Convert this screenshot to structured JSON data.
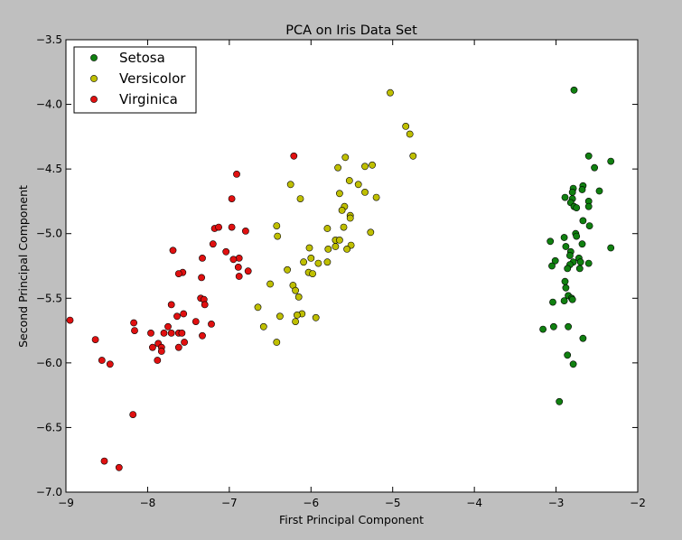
{
  "chart_data": {
    "type": "scatter",
    "title": "PCA on Iris Data Set",
    "xlabel": "First Principal Component",
    "ylabel": "Second Principal Component",
    "xlim": [
      -9,
      -2
    ],
    "ylim": [
      -7.0,
      -3.5
    ],
    "xticks": [
      -9,
      -8,
      -7,
      -6,
      -5,
      -4,
      -3,
      -2
    ],
    "xtick_labels": [
      "−9",
      "−8",
      "−7",
      "−6",
      "−5",
      "−4",
      "−3",
      "−2"
    ],
    "yticks": [
      -7.0,
      -6.5,
      -6.0,
      -5.5,
      -5.0,
      -4.5,
      -4.0,
      -3.5
    ],
    "ytick_labels": [
      "−7.0",
      "−6.5",
      "−6.0",
      "−5.5",
      "−5.0",
      "−4.5",
      "−4.0",
      "−3.5"
    ],
    "grid": false,
    "legend_position": "top-left",
    "series": [
      {
        "name": "Setosa",
        "color": "#108010",
        "points": [
          [
            -2.78,
            -3.89
          ],
          [
            -2.33,
            -4.44
          ],
          [
            -2.6,
            -4.4
          ],
          [
            -2.53,
            -4.49
          ],
          [
            -2.67,
            -4.63
          ],
          [
            -2.68,
            -4.66
          ],
          [
            -2.79,
            -4.65
          ],
          [
            -2.47,
            -4.67
          ],
          [
            -2.8,
            -4.68
          ],
          [
            -2.89,
            -4.72
          ],
          [
            -2.8,
            -4.73
          ],
          [
            -2.6,
            -4.75
          ],
          [
            -2.82,
            -4.76
          ],
          [
            -2.78,
            -4.79
          ],
          [
            -2.6,
            -4.79
          ],
          [
            -2.75,
            -4.8
          ],
          [
            -2.67,
            -4.9
          ],
          [
            -2.59,
            -4.94
          ],
          [
            -2.76,
            -5.0
          ],
          [
            -2.75,
            -5.02
          ],
          [
            -2.9,
            -5.03
          ],
          [
            -3.07,
            -5.06
          ],
          [
            -2.88,
            -5.1
          ],
          [
            -2.33,
            -5.11
          ],
          [
            -2.68,
            -5.08
          ],
          [
            -2.82,
            -5.14
          ],
          [
            -2.83,
            -5.17
          ],
          [
            -2.72,
            -5.19
          ],
          [
            -3.01,
            -5.21
          ],
          [
            -2.79,
            -5.22
          ],
          [
            -2.6,
            -5.23
          ],
          [
            -2.83,
            -5.24
          ],
          [
            -3.05,
            -5.25
          ],
          [
            -2.71,
            -5.27
          ],
          [
            -2.86,
            -5.27
          ],
          [
            -2.89,
            -5.37
          ],
          [
            -2.88,
            -5.42
          ],
          [
            -2.85,
            -5.48
          ],
          [
            -2.81,
            -5.5
          ],
          [
            -2.9,
            -5.52
          ],
          [
            -2.8,
            -5.51
          ],
          [
            -3.04,
            -5.53
          ],
          [
            -2.85,
            -5.72
          ],
          [
            -3.03,
            -5.72
          ],
          [
            -3.16,
            -5.74
          ],
          [
            -2.67,
            -5.81
          ],
          [
            -2.86,
            -5.94
          ],
          [
            -2.79,
            -6.01
          ],
          [
            -2.96,
            -6.3
          ],
          [
            -2.7,
            -5.22
          ]
        ]
      },
      {
        "name": "Versicolor",
        "color": "#bfbf00",
        "points": [
          [
            -5.03,
            -3.91
          ],
          [
            -4.84,
            -4.17
          ],
          [
            -4.79,
            -4.23
          ],
          [
            -4.75,
            -4.4
          ],
          [
            -5.58,
            -4.41
          ],
          [
            -5.25,
            -4.47
          ],
          [
            -5.34,
            -4.48
          ],
          [
            -5.67,
            -4.49
          ],
          [
            -5.53,
            -4.59
          ],
          [
            -5.42,
            -4.62
          ],
          [
            -6.25,
            -4.62
          ],
          [
            -5.34,
            -4.68
          ],
          [
            -5.65,
            -4.69
          ],
          [
            -5.2,
            -4.72
          ],
          [
            -6.13,
            -4.73
          ],
          [
            -5.59,
            -4.79
          ],
          [
            -5.62,
            -4.82
          ],
          [
            -5.52,
            -4.86
          ],
          [
            -5.52,
            -4.88
          ],
          [
            -6.42,
            -4.94
          ],
          [
            -5.6,
            -4.95
          ],
          [
            -5.8,
            -4.96
          ],
          [
            -5.27,
            -4.99
          ],
          [
            -6.41,
            -5.02
          ],
          [
            -5.7,
            -5.05
          ],
          [
            -5.65,
            -5.05
          ],
          [
            -5.7,
            -5.1
          ],
          [
            -5.51,
            -5.09
          ],
          [
            -6.02,
            -5.11
          ],
          [
            -5.56,
            -5.12
          ],
          [
            -5.79,
            -5.12
          ],
          [
            -6.0,
            -5.19
          ],
          [
            -6.09,
            -5.22
          ],
          [
            -5.8,
            -5.22
          ],
          [
            -5.91,
            -5.23
          ],
          [
            -6.29,
            -5.28
          ],
          [
            -6.03,
            -5.3
          ],
          [
            -5.98,
            -5.31
          ],
          [
            -6.5,
            -5.39
          ],
          [
            -6.22,
            -5.4
          ],
          [
            -6.19,
            -5.44
          ],
          [
            -6.15,
            -5.49
          ],
          [
            -6.65,
            -5.57
          ],
          [
            -6.11,
            -5.62
          ],
          [
            -6.17,
            -5.63
          ],
          [
            -6.38,
            -5.64
          ],
          [
            -5.94,
            -5.65
          ],
          [
            -6.19,
            -5.68
          ],
          [
            -6.58,
            -5.72
          ],
          [
            -6.42,
            -5.84
          ]
        ]
      },
      {
        "name": "Virginica",
        "color": "#e01010",
        "points": [
          [
            -6.21,
            -4.4
          ],
          [
            -6.91,
            -4.54
          ],
          [
            -6.97,
            -4.73
          ],
          [
            -7.18,
            -4.96
          ],
          [
            -7.13,
            -4.95
          ],
          [
            -6.97,
            -4.95
          ],
          [
            -6.8,
            -4.98
          ],
          [
            -7.2,
            -5.08
          ],
          [
            -7.69,
            -5.13
          ],
          [
            -7.04,
            -5.14
          ],
          [
            -6.88,
            -5.19
          ],
          [
            -6.95,
            -5.2
          ],
          [
            -7.33,
            -5.19
          ],
          [
            -6.89,
            -5.26
          ],
          [
            -6.77,
            -5.29
          ],
          [
            -7.57,
            -5.3
          ],
          [
            -7.62,
            -5.31
          ],
          [
            -6.88,
            -5.33
          ],
          [
            -7.34,
            -5.34
          ],
          [
            -7.35,
            -5.5
          ],
          [
            -7.31,
            -5.51
          ],
          [
            -7.3,
            -5.55
          ],
          [
            -7.71,
            -5.55
          ],
          [
            -7.56,
            -5.62
          ],
          [
            -7.64,
            -5.64
          ],
          [
            -7.41,
            -5.68
          ],
          [
            -7.22,
            -5.7
          ],
          [
            -8.17,
            -5.69
          ],
          [
            -8.95,
            -5.67
          ],
          [
            -7.75,
            -5.72
          ],
          [
            -8.16,
            -5.75
          ],
          [
            -7.62,
            -5.77
          ],
          [
            -7.58,
            -5.77
          ],
          [
            -7.71,
            -5.77
          ],
          [
            -7.8,
            -5.77
          ],
          [
            -7.96,
            -5.77
          ],
          [
            -7.33,
            -5.79
          ],
          [
            -8.64,
            -5.82
          ],
          [
            -7.55,
            -5.84
          ],
          [
            -7.87,
            -5.85
          ],
          [
            -7.83,
            -5.88
          ],
          [
            -7.62,
            -5.88
          ],
          [
            -7.83,
            -5.91
          ],
          [
            -7.88,
            -5.98
          ],
          [
            -8.56,
            -5.98
          ],
          [
            -8.46,
            -6.01
          ],
          [
            -8.18,
            -6.4
          ],
          [
            -8.53,
            -6.76
          ],
          [
            -8.35,
            -6.81
          ],
          [
            -7.94,
            -5.88
          ]
        ]
      }
    ]
  }
}
